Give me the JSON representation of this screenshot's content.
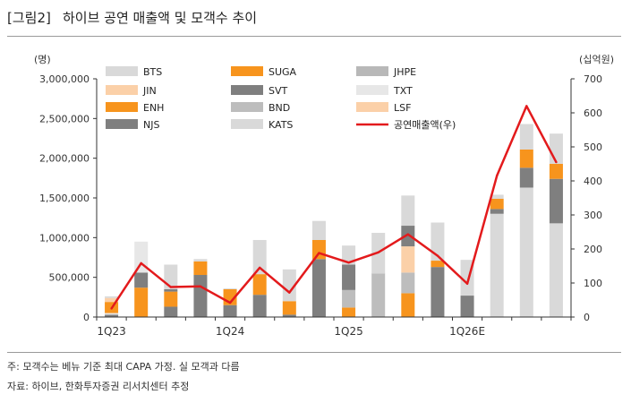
{
  "header": {
    "tag": "[그림2]",
    "title": "하이브 공연 매출액 및 모객수 추이"
  },
  "footnotes": {
    "note": "주: 모객수는 베뉴 기준 최대 CAPA 가정. 실 모객과 다름",
    "source": "자료: 하이브, 한화투자증권 리서치센터 추정"
  },
  "chart_data": {
    "type": "bar",
    "stacked": true,
    "title": "하이브 공연 매출액 및 모객수 추이",
    "left_axis": {
      "unit_label": "(명)",
      "min": 0,
      "max": 3000000,
      "ticks": [
        "0",
        "500,000",
        "1,000,000",
        "1,500,000",
        "2,000,000",
        "2,500,000",
        "3,000,000"
      ]
    },
    "right_axis": {
      "unit_label": "(십억원)",
      "min": 0,
      "max": 700,
      "ticks": [
        "0",
        "100",
        "200",
        "300",
        "400",
        "500",
        "600",
        "700"
      ]
    },
    "x_tick_labels": [
      "1Q23",
      "1Q24",
      "1Q25",
      "1Q26E"
    ],
    "x_label_index": [
      0,
      4,
      8,
      12
    ],
    "series": [
      {
        "name": "BTS",
        "color": "#d9d9d9",
        "values": [
          0,
          0,
          0,
          0,
          0,
          0,
          0,
          0,
          0,
          0,
          0,
          0,
          0,
          1300000,
          1630000,
          1180000
        ]
      },
      {
        "name": "SUGA",
        "color": "#f7941d",
        "values": [
          0,
          370000,
          0,
          0,
          0,
          0,
          0,
          0,
          0,
          0,
          0,
          0,
          0,
          0,
          0,
          0
        ]
      },
      {
        "name": "JHPE",
        "color": "#b8b8b8",
        "values": [
          0,
          0,
          0,
          0,
          0,
          0,
          0,
          0,
          0,
          0,
          0,
          0,
          0,
          0,
          0,
          0
        ]
      },
      {
        "name": "JIN",
        "color": "#fbd0a8",
        "values": [
          0,
          0,
          0,
          0,
          0,
          0,
          0,
          0,
          0,
          0,
          0,
          0,
          0,
          0,
          0,
          0
        ]
      },
      {
        "name": "SVT",
        "color": "#7f7f7f",
        "values": [
          30000,
          190000,
          130000,
          530000,
          150000,
          280000,
          30000,
          730000,
          0,
          0,
          0,
          630000,
          270000,
          60000,
          250000,
          560000
        ]
      },
      {
        "name": "TXT",
        "color": "#e7e7e7",
        "values": [
          20000,
          390000,
          0,
          0,
          0,
          0,
          0,
          0,
          0,
          0,
          0,
          0,
          0,
          0,
          0,
          0
        ]
      },
      {
        "name": "ENH",
        "color": "#f7941d",
        "values": [
          140000,
          0,
          190000,
          170000,
          200000,
          260000,
          170000,
          240000,
          120000,
          0,
          300000,
          80000,
          0,
          130000,
          230000,
          190000
        ]
      },
      {
        "name": "BND",
        "color": "#bdbdbd",
        "values": [
          0,
          0,
          0,
          0,
          0,
          0,
          0,
          0,
          220000,
          550000,
          260000,
          0,
          0,
          0,
          0,
          0
        ]
      },
      {
        "name": "LSF",
        "color": "#fbd0a8",
        "values": [
          50000,
          0,
          0,
          0,
          0,
          0,
          0,
          0,
          0,
          0,
          330000,
          0,
          0,
          0,
          0,
          0
        ]
      },
      {
        "name": "NJS",
        "color": "#7f7f7f",
        "values": [
          0,
          0,
          30000,
          0,
          0,
          0,
          0,
          0,
          320000,
          0,
          260000,
          0,
          0,
          0,
          0,
          0
        ]
      },
      {
        "name": "KATS",
        "color": "#d9d9d9",
        "values": [
          20000,
          0,
          310000,
          30000,
          10000,
          430000,
          400000,
          240000,
          240000,
          510000,
          380000,
          480000,
          450000,
          50000,
          320000,
          380000
        ]
      }
    ],
    "line_series": {
      "name": "공연매출액(우)",
      "color": "#e31a1c",
      "axis": "right",
      "values": [
        25,
        158,
        88,
        90,
        42,
        145,
        72,
        188,
        160,
        190,
        243,
        180,
        98,
        415,
        620,
        455
      ]
    }
  }
}
